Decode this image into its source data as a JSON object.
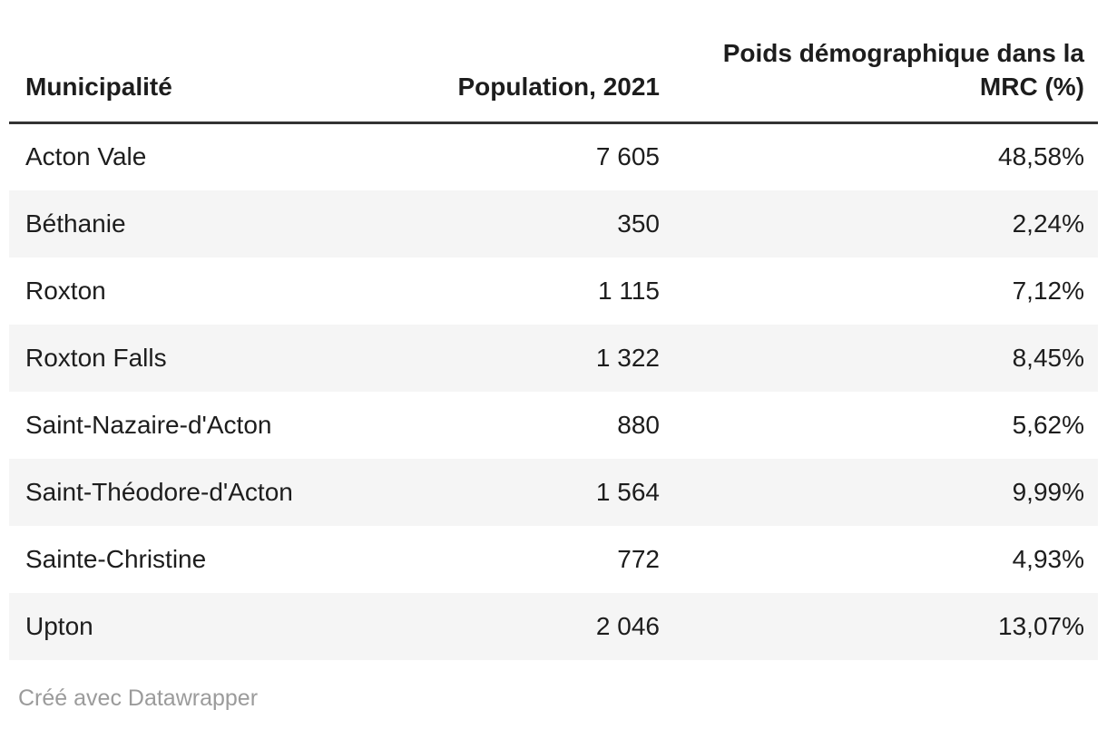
{
  "table": {
    "columns": [
      {
        "label": "Municipalité"
      },
      {
        "label": "Population, 2021"
      },
      {
        "label": "Poids démographique dans la MRC (%)"
      }
    ],
    "rows": [
      {
        "municipality": "Acton Vale",
        "population": "7 605",
        "weight": "48,58%"
      },
      {
        "municipality": "Béthanie",
        "population": "350",
        "weight": "2,24%"
      },
      {
        "municipality": "Roxton",
        "population": "1 115",
        "weight": "7,12%"
      },
      {
        "municipality": "Roxton Falls",
        "population": "1 322",
        "weight": "8,45%"
      },
      {
        "municipality": "Saint-Nazaire-d'Acton",
        "population": "880",
        "weight": "5,62%"
      },
      {
        "municipality": "Saint-Théodore-d'Acton",
        "population": "1 564",
        "weight": "9,99%"
      },
      {
        "municipality": "Sainte-Christine",
        "population": "772",
        "weight": "4,93%"
      },
      {
        "municipality": "Upton",
        "population": "2 046",
        "weight": "13,07%"
      }
    ]
  },
  "footer": {
    "credit": "Créé avec Datawrapper"
  },
  "colors": {
    "stripe": "#f5f5f5",
    "header_border": "#333333",
    "text": "#1d1d1d",
    "footer_text": "#9b9b9b"
  },
  "chart_data": {
    "type": "table",
    "columns": [
      "Municipalité",
      "Population, 2021",
      "Poids démographique dans la MRC (%)"
    ],
    "rows": [
      [
        "Acton Vale",
        7605,
        48.58
      ],
      [
        "Béthanie",
        350,
        2.24
      ],
      [
        "Roxton",
        1115,
        7.12
      ],
      [
        "Roxton Falls",
        1322,
        8.45
      ],
      [
        "Saint-Nazaire-d'Acton",
        880,
        5.62
      ],
      [
        "Saint-Théodore-d'Acton",
        1564,
        9.99
      ],
      [
        "Sainte-Christine",
        772,
        4.93
      ],
      [
        "Upton",
        2046,
        13.07
      ]
    ],
    "layout_hints": {
      "striped_rows": true,
      "stripe_on": "even",
      "number_align": "right",
      "label_align": "left",
      "credit": "Créé avec Datawrapper"
    }
  }
}
